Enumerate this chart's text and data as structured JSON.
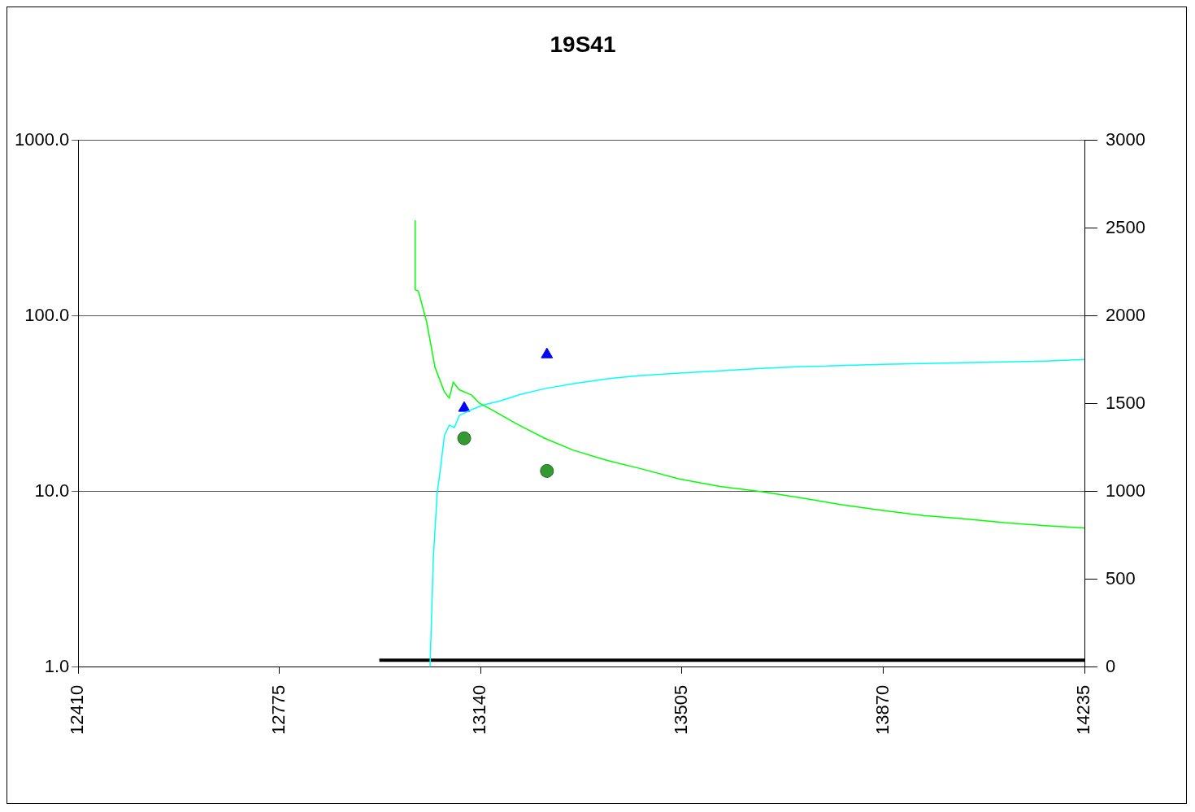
{
  "chart_data": {
    "type": "line",
    "title": "19S41",
    "log": "y",
    "grid": "y",
    "xlim": [
      12410,
      14235
    ],
    "xticks": [
      12410,
      12775,
      13140,
      13505,
      13870,
      14235
    ],
    "ylim": [
      1,
      1000
    ],
    "yticks": [
      {
        "value": 1,
        "label": "1.0"
      },
      {
        "value": 10,
        "label": "10.0"
      },
      {
        "value": 100,
        "label": "100.0"
      },
      {
        "value": 1000,
        "label": "1000.0"
      }
    ],
    "y2lim": [
      0,
      3000
    ],
    "y2ticks": [
      0,
      500,
      1000,
      1500,
      2000,
      2500,
      3000
    ],
    "series": [
      {
        "color": "#00ff00",
        "marker": "none",
        "x": [
          13021,
          13021,
          13027,
          13042,
          13057,
          13074,
          13083,
          13090,
          13101,
          13123,
          13138,
          13160,
          13204,
          13256,
          13308,
          13367,
          13426,
          13500,
          13574,
          13648,
          13721,
          13795,
          13869,
          13943,
          14016,
          14090,
          14164,
          14235
        ],
        "values": [
          349,
          141,
          138,
          92,
          51,
          37,
          34,
          42,
          38,
          35.5,
          31.8,
          29.2,
          24.4,
          20.1,
          17.2,
          15.1,
          13.6,
          11.8,
          10.7,
          10,
          9.2,
          8.4,
          7.8,
          7.3,
          7,
          6.65,
          6.4,
          6.2
        ]
      },
      {
        "color": "#00ffff",
        "marker": "none",
        "axis": "y2",
        "x": [
          13048,
          13054,
          13061,
          13067,
          13074,
          13083,
          13092,
          13101,
          13123,
          13145,
          13175,
          13212,
          13256,
          13308,
          13367,
          13426,
          13500,
          13574,
          13648,
          13721,
          13869,
          14016,
          14164,
          14235
        ],
        "values": [
          0,
          624,
          994,
          1133,
          1318,
          1378,
          1364,
          1433,
          1466,
          1493,
          1516,
          1553,
          1586,
          1614,
          1641,
          1660,
          1674,
          1687,
          1701,
          1711,
          1724,
          1734,
          1743,
          1752
        ]
      },
      {
        "type": "scatter",
        "color": "#0000ff",
        "marker": "triangle",
        "axis": "y2",
        "x": [
          13110,
          13260
        ],
        "values": [
          1475,
          1780
        ]
      },
      {
        "type": "scatter",
        "color": "#339933",
        "marker": "circle",
        "x": [
          13110,
          13260
        ],
        "values": [
          20.1,
          13.1
        ]
      },
      {
        "color": "#000000",
        "marker": "none",
        "axis": "y2",
        "x": [
          12956,
          14235
        ],
        "values": [
          40,
          40
        ]
      }
    ]
  }
}
